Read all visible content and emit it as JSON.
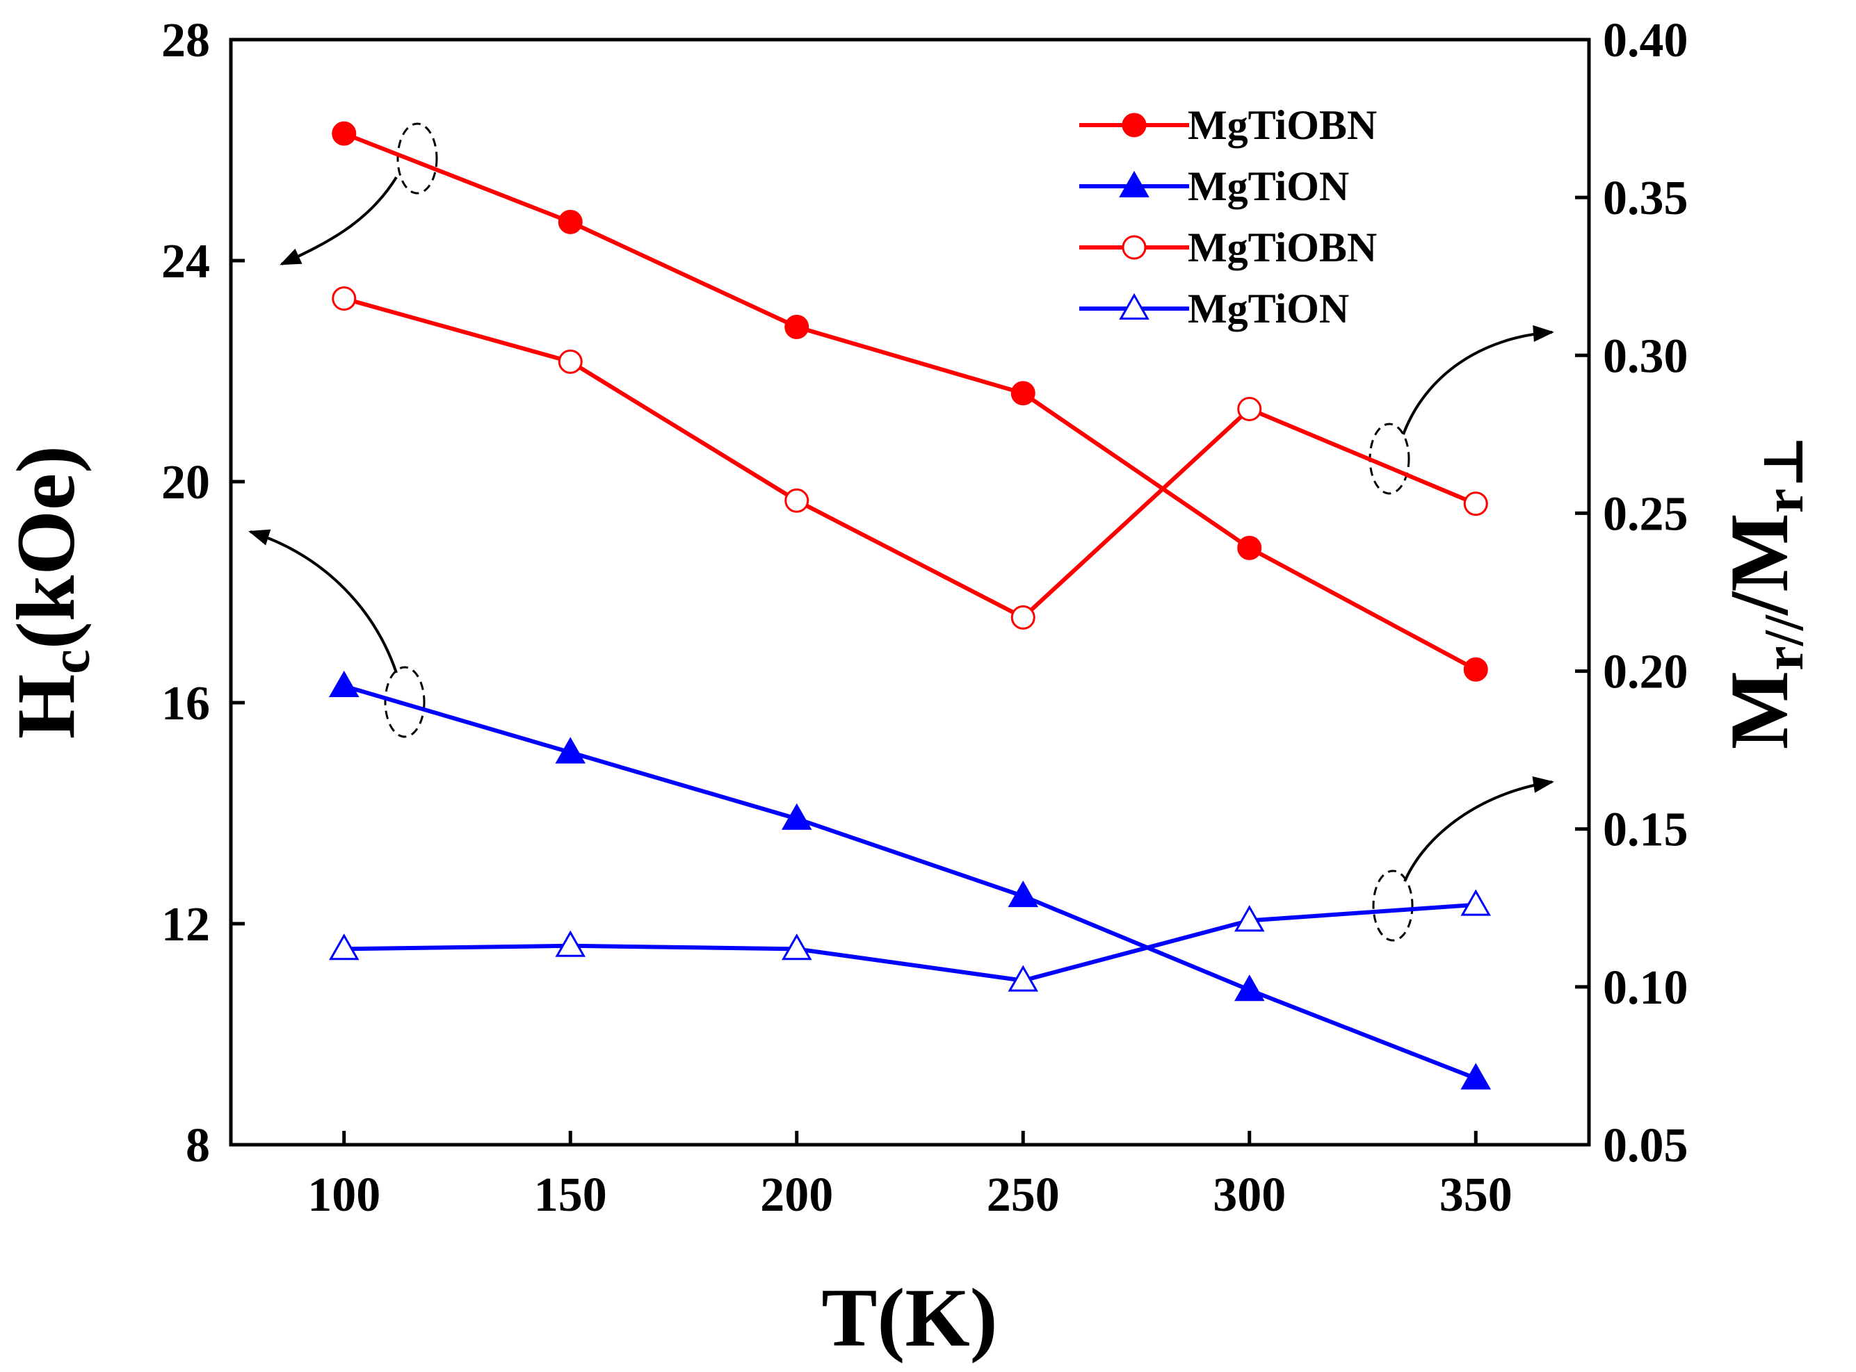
{
  "chart_data": {
    "type": "line",
    "x": [
      100,
      150,
      200,
      250,
      300,
      350
    ],
    "xlabel": "T(K)",
    "xlim": [
      75,
      375
    ],
    "xticks": [
      100,
      150,
      200,
      250,
      300,
      350
    ],
    "ylabel_left": {
      "main": "H",
      "sub": "c",
      "rest": "(kOe)"
    },
    "ylim_left": [
      8,
      28
    ],
    "yticks_left": [
      8,
      12,
      16,
      20,
      24,
      28
    ],
    "ylabel_right": {
      "m1": "M",
      "sub1": "r//",
      "slash": "/",
      "m2": "M",
      "sub2": "r⊥"
    },
    "ylim_right": [
      0.05,
      0.4
    ],
    "yticks_right": [
      0.05,
      0.1,
      0.15,
      0.2,
      0.25,
      0.3,
      0.35,
      0.4
    ],
    "series": [
      {
        "name": "MgTiOBN",
        "axis": "left",
        "color": "#ff0000",
        "marker": "circle",
        "filled": true,
        "values": [
          26.3,
          24.7,
          22.8,
          21.6,
          18.8,
          16.6
        ]
      },
      {
        "name": "MgTiON",
        "axis": "left",
        "color": "#0000ff",
        "marker": "triangle",
        "filled": true,
        "values": [
          16.3,
          15.1,
          13.9,
          12.5,
          10.8,
          9.2
        ]
      },
      {
        "name": "MgTiOBN",
        "axis": "right",
        "color": "#ff0000",
        "marker": "circle",
        "filled": false,
        "values": [
          0.318,
          0.298,
          0.254,
          0.217,
          0.283,
          0.253
        ]
      },
      {
        "name": "MgTiON",
        "axis": "right",
        "color": "#0000ff",
        "marker": "triangle",
        "filled": false,
        "values": [
          0.112,
          0.113,
          0.112,
          0.102,
          0.121,
          0.126
        ]
      }
    ],
    "legend_position": "top-right",
    "grid": false
  }
}
